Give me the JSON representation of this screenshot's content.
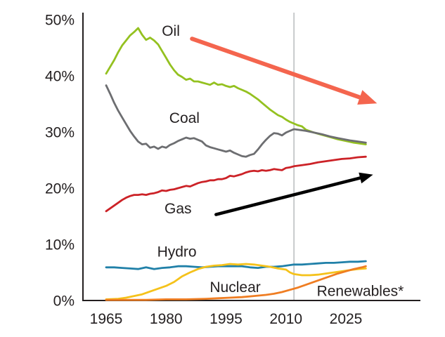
{
  "chart_data": {
    "type": "line",
    "title": "",
    "xlabel": "",
    "ylabel": "",
    "xlim": [
      1965,
      2030
    ],
    "ylim": [
      0,
      50
    ],
    "grid": "off",
    "legend_position": "inline-labels",
    "forecast_divider_year": 2012,
    "x_ticks": [
      {
        "value": 1965,
        "label": "1965"
      },
      {
        "value": 1980,
        "label": "1980"
      },
      {
        "value": 1995,
        "label": "1995"
      },
      {
        "value": 2010,
        "label": "2010"
      },
      {
        "value": 2025,
        "label": "2025"
      }
    ],
    "y_ticks": [
      {
        "value": 0,
        "label": "0%"
      },
      {
        "value": 10,
        "label": "10%"
      },
      {
        "value": 20,
        "label": "20%"
      },
      {
        "value": 30,
        "label": "30%"
      },
      {
        "value": 40,
        "label": "40%"
      },
      {
        "value": 50,
        "label": "50%"
      }
    ],
    "series": [
      {
        "name": "Oil",
        "color": "#94C120",
        "points": [
          [
            1965,
            40.4
          ],
          [
            1966,
            41.6
          ],
          [
            1967,
            42.8
          ],
          [
            1968,
            44.2
          ],
          [
            1969,
            45.4
          ],
          [
            1970,
            46.3
          ],
          [
            1971,
            47.2
          ],
          [
            1972,
            47.8
          ],
          [
            1973,
            48.5
          ],
          [
            1974,
            47.3
          ],
          [
            1975,
            46.4
          ],
          [
            1976,
            46.8
          ],
          [
            1977,
            46.3
          ],
          [
            1978,
            45.6
          ],
          [
            1979,
            44.4
          ],
          [
            1980,
            43.2
          ],
          [
            1981,
            42.0
          ],
          [
            1982,
            41.0
          ],
          [
            1983,
            40.2
          ],
          [
            1984,
            39.8
          ],
          [
            1985,
            39.3
          ],
          [
            1986,
            39.5
          ],
          [
            1987,
            39.0
          ],
          [
            1988,
            39.0
          ],
          [
            1989,
            38.8
          ],
          [
            1990,
            38.6
          ],
          [
            1991,
            38.4
          ],
          [
            1992,
            38.8
          ],
          [
            1993,
            38.4
          ],
          [
            1994,
            38.5
          ],
          [
            1995,
            38.2
          ],
          [
            1996,
            38.0
          ],
          [
            1997,
            38.2
          ],
          [
            1998,
            37.8
          ],
          [
            1999,
            37.5
          ],
          [
            2000,
            37.2
          ],
          [
            2001,
            36.8
          ],
          [
            2002,
            36.3
          ],
          [
            2003,
            35.8
          ],
          [
            2004,
            35.2
          ],
          [
            2005,
            34.6
          ],
          [
            2006,
            34.0
          ],
          [
            2007,
            33.5
          ],
          [
            2008,
            33.0
          ],
          [
            2009,
            32.7
          ],
          [
            2010,
            32.2
          ],
          [
            2011,
            31.8
          ],
          [
            2012,
            31.5
          ],
          [
            2013,
            31.2
          ],
          [
            2014,
            31.0
          ],
          [
            2015,
            30.4
          ],
          [
            2017,
            29.9
          ],
          [
            2019,
            29.5
          ],
          [
            2021,
            29.1
          ],
          [
            2023,
            28.7
          ],
          [
            2025,
            28.4
          ],
          [
            2027,
            28.1
          ],
          [
            2030,
            27.8
          ]
        ]
      },
      {
        "name": "Coal",
        "color": "#6D6E71",
        "points": [
          [
            1965,
            38.3
          ],
          [
            1966,
            36.8
          ],
          [
            1967,
            35.2
          ],
          [
            1968,
            33.8
          ],
          [
            1969,
            32.6
          ],
          [
            1970,
            31.4
          ],
          [
            1971,
            30.2
          ],
          [
            1972,
            29.2
          ],
          [
            1973,
            28.3
          ],
          [
            1974,
            27.8
          ],
          [
            1975,
            27.9
          ],
          [
            1976,
            27.2
          ],
          [
            1977,
            27.4
          ],
          [
            1978,
            27.0
          ],
          [
            1979,
            27.4
          ],
          [
            1980,
            27.2
          ],
          [
            1981,
            27.7
          ],
          [
            1982,
            28.0
          ],
          [
            1983,
            28.4
          ],
          [
            1984,
            28.7
          ],
          [
            1985,
            29.0
          ],
          [
            1986,
            28.8
          ],
          [
            1987,
            28.9
          ],
          [
            1988,
            28.6
          ],
          [
            1989,
            28.3
          ],
          [
            1990,
            27.6
          ],
          [
            1991,
            27.3
          ],
          [
            1992,
            27.1
          ],
          [
            1993,
            26.9
          ],
          [
            1994,
            26.7
          ],
          [
            1995,
            26.5
          ],
          [
            1996,
            26.7
          ],
          [
            1997,
            26.3
          ],
          [
            1998,
            26.0
          ],
          [
            1999,
            25.7
          ],
          [
            2000,
            25.6
          ],
          [
            2001,
            25.9
          ],
          [
            2002,
            26.1
          ],
          [
            2003,
            26.9
          ],
          [
            2004,
            27.8
          ],
          [
            2005,
            28.6
          ],
          [
            2006,
            29.3
          ],
          [
            2007,
            29.8
          ],
          [
            2008,
            29.7
          ],
          [
            2009,
            29.4
          ],
          [
            2010,
            29.9
          ],
          [
            2011,
            30.2
          ],
          [
            2012,
            30.5
          ],
          [
            2013,
            30.4
          ],
          [
            2015,
            30.2
          ],
          [
            2017,
            29.9
          ],
          [
            2019,
            29.6
          ],
          [
            2021,
            29.2
          ],
          [
            2023,
            28.9
          ],
          [
            2026,
            28.5
          ],
          [
            2030,
            28.1
          ]
        ]
      },
      {
        "name": "Gas",
        "color": "#CC2227",
        "points": [
          [
            1965,
            15.9
          ],
          [
            1966,
            16.4
          ],
          [
            1967,
            16.9
          ],
          [
            1968,
            17.4
          ],
          [
            1969,
            17.9
          ],
          [
            1970,
            18.3
          ],
          [
            1971,
            18.6
          ],
          [
            1972,
            18.8
          ],
          [
            1973,
            18.8
          ],
          [
            1974,
            18.9
          ],
          [
            1975,
            18.8
          ],
          [
            1976,
            19.0
          ],
          [
            1977,
            19.1
          ],
          [
            1978,
            19.3
          ],
          [
            1979,
            19.6
          ],
          [
            1980,
            19.5
          ],
          [
            1981,
            19.7
          ],
          [
            1982,
            19.8
          ],
          [
            1983,
            20.0
          ],
          [
            1984,
            20.2
          ],
          [
            1985,
            20.4
          ],
          [
            1986,
            20.3
          ],
          [
            1987,
            20.6
          ],
          [
            1988,
            20.9
          ],
          [
            1989,
            21.1
          ],
          [
            1990,
            21.2
          ],
          [
            1991,
            21.4
          ],
          [
            1992,
            21.4
          ],
          [
            1993,
            21.6
          ],
          [
            1994,
            21.6
          ],
          [
            1995,
            21.8
          ],
          [
            1996,
            22.2
          ],
          [
            1997,
            22.1
          ],
          [
            1998,
            22.3
          ],
          [
            1999,
            22.5
          ],
          [
            2000,
            22.8
          ],
          [
            2001,
            23.0
          ],
          [
            2002,
            23.1
          ],
          [
            2003,
            23.0
          ],
          [
            2004,
            23.2
          ],
          [
            2005,
            23.1
          ],
          [
            2006,
            23.2
          ],
          [
            2007,
            23.4
          ],
          [
            2008,
            23.3
          ],
          [
            2009,
            23.2
          ],
          [
            2010,
            23.6
          ],
          [
            2011,
            23.7
          ],
          [
            2012,
            23.9
          ],
          [
            2014,
            24.1
          ],
          [
            2016,
            24.3
          ],
          [
            2018,
            24.6
          ],
          [
            2020,
            24.8
          ],
          [
            2022,
            25.0
          ],
          [
            2024,
            25.2
          ],
          [
            2026,
            25.3
          ],
          [
            2028,
            25.5
          ],
          [
            2030,
            25.6
          ]
        ]
      },
      {
        "name": "Hydro",
        "color": "#2080A8",
        "points": [
          [
            1965,
            5.9
          ],
          [
            1967,
            5.9
          ],
          [
            1969,
            5.8
          ],
          [
            1971,
            5.7
          ],
          [
            1973,
            5.6
          ],
          [
            1975,
            5.9
          ],
          [
            1977,
            5.6
          ],
          [
            1979,
            5.8
          ],
          [
            1981,
            5.9
          ],
          [
            1983,
            6.1
          ],
          [
            1985,
            6.1
          ],
          [
            1987,
            6.0
          ],
          [
            1989,
            5.9
          ],
          [
            1991,
            6.0
          ],
          [
            1993,
            6.1
          ],
          [
            1995,
            6.1
          ],
          [
            1997,
            6.1
          ],
          [
            1999,
            6.1
          ],
          [
            2001,
            5.9
          ],
          [
            2003,
            5.8
          ],
          [
            2005,
            6.0
          ],
          [
            2007,
            6.0
          ],
          [
            2009,
            6.1
          ],
          [
            2010,
            6.2
          ],
          [
            2012,
            6.4
          ],
          [
            2014,
            6.4
          ],
          [
            2016,
            6.5
          ],
          [
            2018,
            6.6
          ],
          [
            2020,
            6.7
          ],
          [
            2022,
            6.7
          ],
          [
            2024,
            6.8
          ],
          [
            2026,
            6.9
          ],
          [
            2028,
            6.9
          ],
          [
            2030,
            7.0
          ]
        ]
      },
      {
        "name": "Nuclear",
        "color": "#F5C21B",
        "points": [
          [
            1965,
            0.2
          ],
          [
            1968,
            0.3
          ],
          [
            1970,
            0.5
          ],
          [
            1972,
            0.8
          ],
          [
            1974,
            1.1
          ],
          [
            1976,
            1.6
          ],
          [
            1978,
            2.1
          ],
          [
            1980,
            2.6
          ],
          [
            1982,
            3.3
          ],
          [
            1984,
            4.3
          ],
          [
            1986,
            5.0
          ],
          [
            1988,
            5.6
          ],
          [
            1990,
            6.0
          ],
          [
            1992,
            6.2
          ],
          [
            1994,
            6.3
          ],
          [
            1996,
            6.5
          ],
          [
            1998,
            6.4
          ],
          [
            2000,
            6.5
          ],
          [
            2002,
            6.4
          ],
          [
            2004,
            6.2
          ],
          [
            2006,
            6.0
          ],
          [
            2008,
            5.7
          ],
          [
            2010,
            5.5
          ],
          [
            2011,
            5.0
          ],
          [
            2012,
            4.7
          ],
          [
            2014,
            4.5
          ],
          [
            2016,
            4.5
          ],
          [
            2018,
            4.6
          ],
          [
            2020,
            4.8
          ],
          [
            2022,
            5.0
          ],
          [
            2024,
            5.2
          ],
          [
            2026,
            5.4
          ],
          [
            2028,
            5.6
          ],
          [
            2030,
            5.7
          ]
        ]
      },
      {
        "name": "Renewables",
        "color": "#EF7D22",
        "points": [
          [
            1965,
            0.1
          ],
          [
            1970,
            0.1
          ],
          [
            1975,
            0.1
          ],
          [
            1980,
            0.2
          ],
          [
            1985,
            0.2
          ],
          [
            1990,
            0.3
          ],
          [
            1993,
            0.4
          ],
          [
            1996,
            0.5
          ],
          [
            1999,
            0.6
          ],
          [
            2002,
            0.8
          ],
          [
            2005,
            1.0
          ],
          [
            2007,
            1.2
          ],
          [
            2009,
            1.5
          ],
          [
            2011,
            1.9
          ],
          [
            2013,
            2.3
          ],
          [
            2015,
            2.8
          ],
          [
            2017,
            3.3
          ],
          [
            2019,
            3.8
          ],
          [
            2021,
            4.3
          ],
          [
            2023,
            4.8
          ],
          [
            2025,
            5.2
          ],
          [
            2027,
            5.6
          ],
          [
            2029,
            5.9
          ],
          [
            2030,
            6.1
          ]
        ]
      }
    ],
    "annotations": [
      {
        "id": "oil-label",
        "text": "Oil",
        "x": 1981.2,
        "y": 48.0
      },
      {
        "id": "coal-label",
        "text": "Coal",
        "x": 1984.6,
        "y": 32.5
      },
      {
        "id": "gas-label",
        "text": "Gas",
        "x": 1983.0,
        "y": 16.4
      },
      {
        "id": "hydro-label",
        "text": "Hydro",
        "x": 1982.7,
        "y": 8.7
      },
      {
        "id": "nuclear-label",
        "text": "Nuclear",
        "x": 1997.3,
        "y": 2.4
      },
      {
        "id": "renewables-label",
        "text": "Renewables*",
        "x": 2028.6,
        "y": 1.7
      }
    ],
    "arrows": [
      {
        "name": "declining-trend-arrow",
        "color": "#F4654E",
        "from": [
          1986.5,
          46.6
        ],
        "to": [
          2032.8,
          35.1
        ],
        "width": 6,
        "head_len": 26,
        "head_w": 22
      },
      {
        "name": "rising-trend-arrow",
        "color": "#000000",
        "from": [
          1992.5,
          15.3
        ],
        "to": [
          2031.8,
          22.4
        ],
        "width": 4.5,
        "head_len": 19,
        "head_w": 16
      }
    ],
    "axis_color": "#231F20",
    "divider_color": "#A8AAAD"
  }
}
